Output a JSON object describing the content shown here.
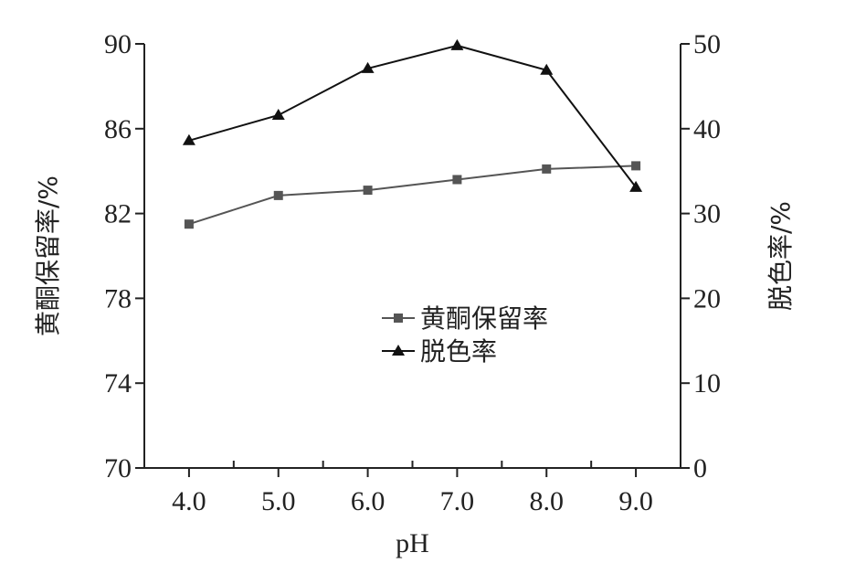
{
  "chart_data": {
    "type": "line",
    "x": [
      4.0,
      5.0,
      6.0,
      7.0,
      8.0,
      9.0
    ],
    "x_tick_labels": [
      "4.0",
      "5.0",
      "6.0",
      "7.0",
      "8.0",
      "9.0"
    ],
    "xlabel": "pH",
    "xlim": [
      3.5,
      9.5
    ],
    "ylabel_left": "黄酮保留率/%",
    "ylim_left": [
      70,
      90
    ],
    "y_left_ticks": [
      "70",
      "74",
      "78",
      "82",
      "86",
      "90"
    ],
    "ylabel_right": "脱色率/%",
    "ylim_right": [
      0,
      50
    ],
    "y_right_ticks": [
      "0",
      "10",
      "20",
      "30",
      "40",
      "50"
    ],
    "grid": false,
    "legend_position": "center",
    "series": [
      {
        "name": "黄酮保留率",
        "axis": "left",
        "marker": "square",
        "color": "#555555",
        "values": [
          81.5,
          82.85,
          83.1,
          83.6,
          84.1,
          84.25
        ]
      },
      {
        "name": "脱色率",
        "axis": "right",
        "marker": "triangle",
        "color": "#111111",
        "values": [
          38.6,
          41.6,
          47.1,
          49.8,
          46.9,
          33.1
        ]
      }
    ]
  }
}
